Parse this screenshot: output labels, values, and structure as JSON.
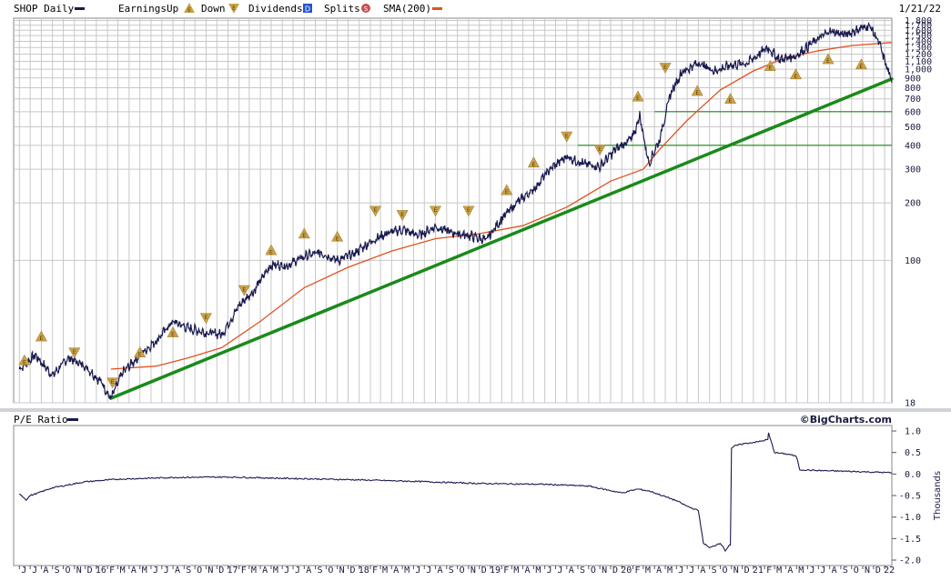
{
  "legend": {
    "symbol": "SHOP Daily",
    "earnings_label": "Earnings",
    "up_label": "Up",
    "down_label": "Down",
    "dividends_label": "Dividends",
    "splits_label": "Splits",
    "sma_label": "SMA(200)",
    "date": "1/21/22",
    "pe_label": "P/E Ratio",
    "source": "©BigCharts.com",
    "dividend_glyph": "D",
    "split_glyph": "S",
    "earnings_glyph": "E"
  },
  "colors": {
    "price": "#1a1a50",
    "sma": "#e0531f",
    "trend": "#1a8a1a",
    "grid": "#c8c8c8",
    "earnings": "#c9a24a",
    "dividend": "#2255cc",
    "split": "#c85050"
  },
  "chart_data": [
    {
      "type": "line",
      "scale": "log",
      "y_ticks": [
        18,
        100,
        200,
        300,
        400,
        500,
        600,
        700,
        800,
        900,
        "1,000",
        "1,100",
        "1,200",
        "1,300",
        "1,400",
        "1,500",
        "1,600",
        "1,700",
        "1,800"
      ],
      "ylim": [
        18,
        1850
      ],
      "grid": true,
      "series": [
        {
          "name": "SHOP Daily",
          "x": [
            "2015-06-01",
            "2015-07-15",
            "2015-09-01",
            "2015-10-15",
            "2015-12-01",
            "2016-01-15",
            "2016-02-10",
            "2016-03-15",
            "2016-05-01",
            "2016-06-15",
            "2016-08-01",
            "2016-09-15",
            "2016-11-01",
            "2016-12-15",
            "2017-02-01",
            "2017-03-15",
            "2017-05-01",
            "2017-06-15",
            "2017-08-01",
            "2017-09-15",
            "2017-11-01",
            "2017-12-15",
            "2018-02-01",
            "2018-03-15",
            "2018-05-01",
            "2018-06-15",
            "2018-08-01",
            "2018-09-15",
            "2018-11-01",
            "2018-12-20",
            "2019-02-01",
            "2019-03-15",
            "2019-05-01",
            "2019-06-15",
            "2019-08-01",
            "2019-09-15",
            "2019-11-01",
            "2019-12-15",
            "2020-02-01",
            "2020-02-20",
            "2020-03-16",
            "2020-04-15",
            "2020-05-15",
            "2020-06-15",
            "2020-08-01",
            "2020-09-15",
            "2020-11-01",
            "2020-12-15",
            "2021-02-10",
            "2021-03-15",
            "2021-05-01",
            "2021-06-15",
            "2021-08-01",
            "2021-09-15",
            "2021-11-19",
            "2021-12-15",
            "2022-01-21"
          ],
          "values": [
            27,
            32,
            25,
            31,
            28,
            23,
            19,
            26,
            32,
            38,
            48,
            44,
            42,
            41,
            58,
            70,
            95,
            94,
            105,
            110,
            100,
            108,
            125,
            138,
            145,
            135,
            150,
            140,
            135,
            128,
            165,
            200,
            235,
            300,
            350,
            320,
            310,
            380,
            440,
            570,
            320,
            430,
            740,
            960,
            1080,
            980,
            1050,
            1080,
            1300,
            1120,
            1180,
            1380,
            1580,
            1520,
            1700,
            1400,
            850
          ]
        },
        {
          "name": "SMA(200)",
          "x": [
            "2016-02-10",
            "2016-06-15",
            "2016-09-15",
            "2016-12-15",
            "2017-04-01",
            "2017-08-01",
            "2017-12-01",
            "2018-04-01",
            "2018-08-01",
            "2018-12-01",
            "2019-04-01",
            "2019-08-01",
            "2019-12-01",
            "2020-03-01",
            "2020-04-15",
            "2020-07-01",
            "2020-10-01",
            "2021-01-01",
            "2021-04-01",
            "2021-07-01",
            "2021-10-01",
            "2022-01-21"
          ],
          "values": [
            27,
            28,
            31,
            35,
            48,
            72,
            92,
            112,
            130,
            138,
            152,
            190,
            260,
            300,
            380,
            540,
            780,
            980,
            1150,
            1250,
            1330,
            1380
          ]
        },
        {
          "name": "Trend",
          "x": [
            "2016-02-10",
            "2022-01-21"
          ],
          "values": [
            19,
            890
          ]
        },
        {
          "name": "Level 600",
          "x": [
            "2020-04-01",
            "2022-01-21"
          ],
          "values": [
            600,
            600
          ]
        },
        {
          "name": "Level 400",
          "x": [
            "2019-09-01",
            "2022-01-21"
          ],
          "values": [
            400,
            400
          ]
        }
      ],
      "earnings_events": [
        {
          "x": "2015-06-15",
          "y": 30,
          "dir": "up"
        },
        {
          "x": "2015-08-01",
          "y": 40,
          "dir": "up"
        },
        {
          "x": "2015-11-01",
          "y": 33,
          "dir": "down"
        },
        {
          "x": "2016-02-15",
          "y": 23,
          "dir": "down"
        },
        {
          "x": "2016-05-01",
          "y": 33,
          "dir": "up"
        },
        {
          "x": "2016-08-01",
          "y": 42,
          "dir": "up"
        },
        {
          "x": "2016-11-01",
          "y": 50,
          "dir": "down"
        },
        {
          "x": "2017-02-15",
          "y": 70,
          "dir": "down"
        },
        {
          "x": "2017-05-01",
          "y": 113,
          "dir": "up"
        },
        {
          "x": "2017-08-01",
          "y": 138,
          "dir": "up"
        },
        {
          "x": "2017-11-01",
          "y": 133,
          "dir": "up"
        },
        {
          "x": "2018-02-15",
          "y": 182,
          "dir": "down"
        },
        {
          "x": "2018-05-01",
          "y": 173,
          "dir": "down"
        },
        {
          "x": "2018-08-01",
          "y": 182,
          "dir": "down"
        },
        {
          "x": "2018-11-01",
          "y": 182,
          "dir": "down"
        },
        {
          "x": "2019-02-15",
          "y": 233,
          "dir": "up"
        },
        {
          "x": "2019-05-01",
          "y": 325,
          "dir": "up"
        },
        {
          "x": "2019-08-01",
          "y": 445,
          "dir": "down"
        },
        {
          "x": "2019-11-01",
          "y": 380,
          "dir": "down"
        },
        {
          "x": "2020-02-15",
          "y": 720,
          "dir": "up"
        },
        {
          "x": "2020-05-01",
          "y": 1020,
          "dir": "down"
        },
        {
          "x": "2020-07-29",
          "y": 770,
          "dir": "up"
        },
        {
          "x": "2020-10-29",
          "y": 700,
          "dir": "up"
        },
        {
          "x": "2021-02-17",
          "y": 1040,
          "dir": "up"
        },
        {
          "x": "2021-04-29",
          "y": 940,
          "dir": "up"
        },
        {
          "x": "2021-07-28",
          "y": 1130,
          "dir": "up"
        },
        {
          "x": "2021-10-28",
          "y": 1060,
          "dir": "up"
        }
      ]
    },
    {
      "type": "line",
      "title": "P/E Ratio",
      "y_ticks": [
        "1.0",
        "0.5",
        "0.0",
        "-0.5",
        "-1.0",
        "-1.5",
        "-2.0"
      ],
      "ylabel": "Thousands",
      "ylim": [
        -2.0,
        1.0
      ],
      "grid": false,
      "series": [
        {
          "name": "P/E Ratio",
          "x": [
            "2015-06-01",
            "2015-06-20",
            "2015-07-01",
            "2015-07-20",
            "2015-09-01",
            "2015-12-01",
            "2016-03-01",
            "2016-08-01",
            "2017-01-01",
            "2017-06-01",
            "2017-12-01",
            "2018-06-01",
            "2018-12-01",
            "2019-06-01",
            "2019-10-01",
            "2020-01-01",
            "2020-02-15",
            "2020-03-20",
            "2020-06-01",
            "2020-07-01",
            "2020-08-01",
            "2020-08-15",
            "2020-09-01",
            "2020-10-01",
            "2020-10-15",
            "2020-10-26",
            "2020-11-01",
            "2020-11-10",
            "2020-12-01",
            "2021-01-15",
            "2021-02-10",
            "2021-02-12",
            "2021-03-01",
            "2021-04-15",
            "2021-05-01",
            "2021-05-10",
            "2021-07-01",
            "2021-10-01",
            "2022-01-21"
          ],
          "values": [
            -0.45,
            -0.6,
            -0.5,
            -0.45,
            -0.32,
            -0.18,
            -0.12,
            -0.08,
            -0.07,
            -0.1,
            -0.13,
            -0.17,
            -0.22,
            -0.24,
            -0.28,
            -0.44,
            -0.35,
            -0.4,
            -0.62,
            -0.75,
            -0.85,
            -1.6,
            -1.72,
            -1.6,
            -1.78,
            -1.65,
            0.6,
            0.65,
            0.7,
            0.75,
            0.8,
            0.95,
            0.5,
            0.45,
            0.4,
            0.1,
            0.08,
            0.06,
            0.03
          ]
        }
      ]
    }
  ],
  "x_axis": {
    "range": [
      "2015-05-16",
      "2022-01-21"
    ],
    "ticks": [
      {
        "x": "2015-06-01",
        "label": "J"
      },
      {
        "x": "2015-07-01",
        "label": "J"
      },
      {
        "x": "2015-08-01",
        "label": "A"
      },
      {
        "x": "2015-09-01",
        "label": "S"
      },
      {
        "x": "2015-10-01",
        "label": "O"
      },
      {
        "x": "2015-11-01",
        "label": "N"
      },
      {
        "x": "2015-12-01",
        "label": "D"
      },
      {
        "x": "2016-01-01",
        "label": "16"
      },
      {
        "x": "2016-02-01",
        "label": "F"
      },
      {
        "x": "2016-03-01",
        "label": "M"
      },
      {
        "x": "2016-04-01",
        "label": "A"
      },
      {
        "x": "2016-05-01",
        "label": "M"
      },
      {
        "x": "2016-06-01",
        "label": "J"
      },
      {
        "x": "2016-07-01",
        "label": "J"
      },
      {
        "x": "2016-08-01",
        "label": "A"
      },
      {
        "x": "2016-09-01",
        "label": "S"
      },
      {
        "x": "2016-10-01",
        "label": "O"
      },
      {
        "x": "2016-11-01",
        "label": "N"
      },
      {
        "x": "2016-12-01",
        "label": "D"
      },
      {
        "x": "2017-01-01",
        "label": "17"
      },
      {
        "x": "2017-02-01",
        "label": "F"
      },
      {
        "x": "2017-03-01",
        "label": "M"
      },
      {
        "x": "2017-04-01",
        "label": "A"
      },
      {
        "x": "2017-05-01",
        "label": "M"
      },
      {
        "x": "2017-06-01",
        "label": "J"
      },
      {
        "x": "2017-07-01",
        "label": "J"
      },
      {
        "x": "2017-08-01",
        "label": "A"
      },
      {
        "x": "2017-09-01",
        "label": "S"
      },
      {
        "x": "2017-10-01",
        "label": "O"
      },
      {
        "x": "2017-11-01",
        "label": "N"
      },
      {
        "x": "2017-12-01",
        "label": "D"
      },
      {
        "x": "2018-01-01",
        "label": "18"
      },
      {
        "x": "2018-02-01",
        "label": "F"
      },
      {
        "x": "2018-03-01",
        "label": "M"
      },
      {
        "x": "2018-04-01",
        "label": "A"
      },
      {
        "x": "2018-05-01",
        "label": "M"
      },
      {
        "x": "2018-06-01",
        "label": "J"
      },
      {
        "x": "2018-07-01",
        "label": "J"
      },
      {
        "x": "2018-08-01",
        "label": "A"
      },
      {
        "x": "2018-09-01",
        "label": "S"
      },
      {
        "x": "2018-10-01",
        "label": "O"
      },
      {
        "x": "2018-11-01",
        "label": "N"
      },
      {
        "x": "2018-12-01",
        "label": "D"
      },
      {
        "x": "2019-01-01",
        "label": "19"
      },
      {
        "x": "2019-02-01",
        "label": "F"
      },
      {
        "x": "2019-03-01",
        "label": "M"
      },
      {
        "x": "2019-04-01",
        "label": "A"
      },
      {
        "x": "2019-05-01",
        "label": "M"
      },
      {
        "x": "2019-06-01",
        "label": "J"
      },
      {
        "x": "2019-07-01",
        "label": "J"
      },
      {
        "x": "2019-08-01",
        "label": "A"
      },
      {
        "x": "2019-09-01",
        "label": "S"
      },
      {
        "x": "2019-10-01",
        "label": "O"
      },
      {
        "x": "2019-11-01",
        "label": "N"
      },
      {
        "x": "2019-12-01",
        "label": "D"
      },
      {
        "x": "2020-01-01",
        "label": "20"
      },
      {
        "x": "2020-02-01",
        "label": "F"
      },
      {
        "x": "2020-03-01",
        "label": "M"
      },
      {
        "x": "2020-04-01",
        "label": "A"
      },
      {
        "x": "2020-05-01",
        "label": "M"
      },
      {
        "x": "2020-06-01",
        "label": "J"
      },
      {
        "x": "2020-07-01",
        "label": "J"
      },
      {
        "x": "2020-08-01",
        "label": "A"
      },
      {
        "x": "2020-09-01",
        "label": "S"
      },
      {
        "x": "2020-10-01",
        "label": "O"
      },
      {
        "x": "2020-11-01",
        "label": "N"
      },
      {
        "x": "2020-12-01",
        "label": "D"
      },
      {
        "x": "2021-01-01",
        "label": "21"
      },
      {
        "x": "2021-02-01",
        "label": "F"
      },
      {
        "x": "2021-03-01",
        "label": "M"
      },
      {
        "x": "2021-04-01",
        "label": "A"
      },
      {
        "x": "2021-05-01",
        "label": "M"
      },
      {
        "x": "2021-06-01",
        "label": "J"
      },
      {
        "x": "2021-07-01",
        "label": "J"
      },
      {
        "x": "2021-08-01",
        "label": "A"
      },
      {
        "x": "2021-09-01",
        "label": "S"
      },
      {
        "x": "2021-10-01",
        "label": "O"
      },
      {
        "x": "2021-11-01",
        "label": "N"
      },
      {
        "x": "2021-12-01",
        "label": "D"
      },
      {
        "x": "2022-01-01",
        "label": "22"
      }
    ]
  }
}
